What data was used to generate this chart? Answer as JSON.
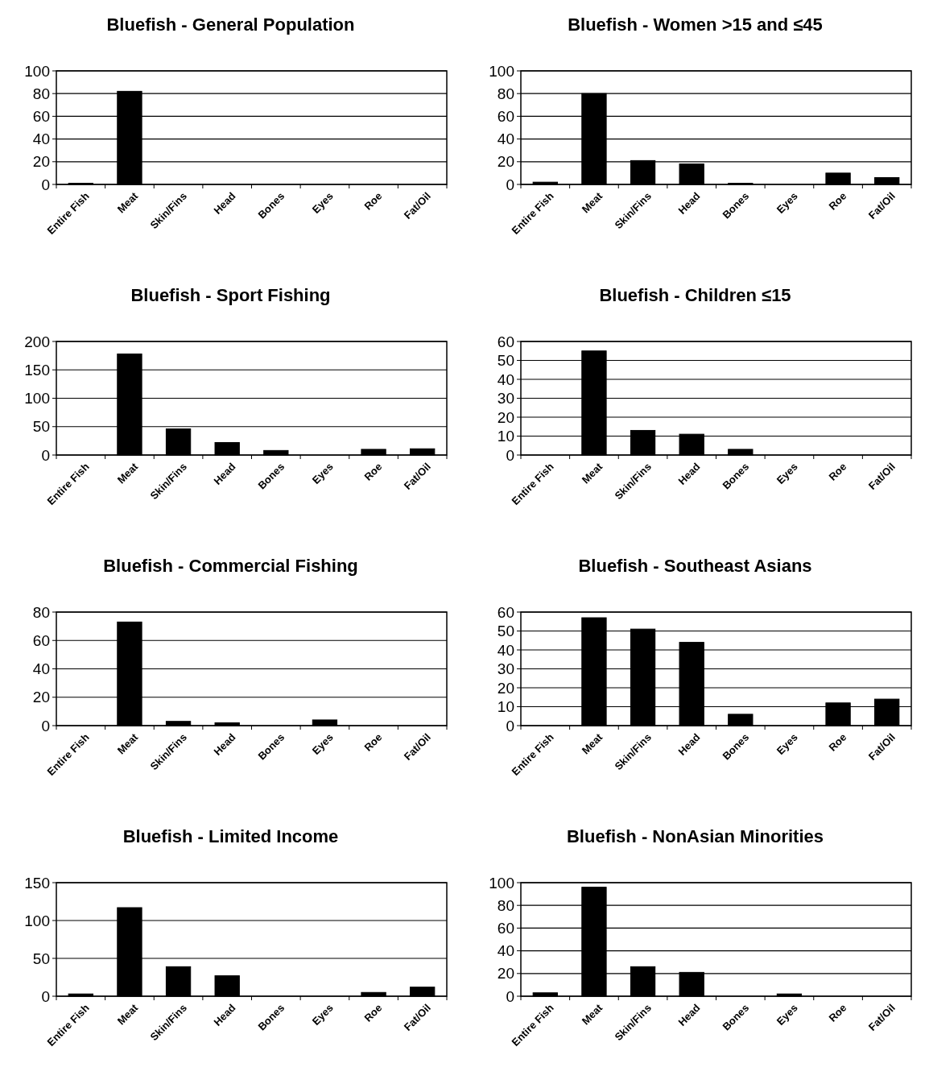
{
  "chart_data": [
    {
      "type": "bar",
      "title": "Bluefish - General Population",
      "categories": [
        "Entire Fish",
        "Meat",
        "Skin/Fins",
        "Head",
        "Bones",
        "Eyes",
        "Roe",
        "Fat/Oil"
      ],
      "values": [
        1,
        82,
        0,
        0,
        0,
        0,
        0,
        0
      ],
      "color": "#000000",
      "ylim": [
        0,
        100
      ],
      "yticks": [
        0,
        20,
        40,
        60,
        80,
        100
      ],
      "grid": "y"
    },
    {
      "type": "bar",
      "title": "Bluefish - Women >15 and ≤45",
      "categories": [
        "Entire Fish",
        "Meat",
        "Skin/Fins",
        "Head",
        "Bones",
        "Eyes",
        "Roe",
        "Fat/Oil"
      ],
      "values": [
        2,
        80,
        21,
        18,
        1,
        0,
        10,
        6
      ],
      "color": "#000000",
      "ylim": [
        0,
        100
      ],
      "yticks": [
        0,
        20,
        40,
        60,
        80,
        100
      ],
      "grid": "y"
    },
    {
      "type": "bar",
      "title": "Bluefish - Sport Fishing",
      "categories": [
        "Entire Fish",
        "Meat",
        "Skin/Fins",
        "Head",
        "Bones",
        "Eyes",
        "Roe",
        "Fat/Oil"
      ],
      "values": [
        0,
        178,
        46,
        22,
        8,
        0,
        10,
        11
      ],
      "color": "#000000",
      "ylim": [
        0,
        200
      ],
      "yticks": [
        0,
        50,
        100,
        150,
        200
      ],
      "grid": "y"
    },
    {
      "type": "bar",
      "title": "Bluefish - Children ≤15",
      "categories": [
        "Entire Fish",
        "Meat",
        "Skin/Fins",
        "Head",
        "Bones",
        "Eyes",
        "Roe",
        "Fat/Oil"
      ],
      "values": [
        0,
        55,
        13,
        11,
        3,
        0,
        0,
        0
      ],
      "color": "#000000",
      "ylim": [
        0,
        60
      ],
      "yticks": [
        0,
        10,
        20,
        30,
        40,
        50,
        60
      ],
      "grid": "y"
    },
    {
      "type": "bar",
      "title": "Bluefish - Commercial Fishing",
      "categories": [
        "Entire Fish",
        "Meat",
        "Skin/Fins",
        "Head",
        "Bones",
        "Eyes",
        "Roe",
        "Fat/Oil"
      ],
      "values": [
        0,
        73,
        3,
        2,
        0,
        4,
        0,
        0
      ],
      "color": "#000000",
      "ylim": [
        0,
        80
      ],
      "yticks": [
        0,
        20,
        40,
        60,
        80
      ],
      "grid": "y"
    },
    {
      "type": "bar",
      "title": "Bluefish - Southeast Asians",
      "categories": [
        "Entire Fish",
        "Meat",
        "Skin/Fins",
        "Head",
        "Bones",
        "Eyes",
        "Roe",
        "Fat/Oil"
      ],
      "values": [
        0,
        57,
        51,
        44,
        6,
        0,
        12,
        14
      ],
      "color": "#000000",
      "ylim": [
        0,
        60
      ],
      "yticks": [
        0,
        10,
        20,
        30,
        40,
        50,
        60
      ],
      "grid": "y"
    },
    {
      "type": "bar",
      "title": "Bluefish - Limited Income",
      "categories": [
        "Entire Fish",
        "Meat",
        "Skin/Fins",
        "Head",
        "Bones",
        "Eyes",
        "Roe",
        "Fat/Oil"
      ],
      "values": [
        3,
        117,
        39,
        27,
        0,
        0,
        5,
        12
      ],
      "color": "#000000",
      "ylim": [
        0,
        150
      ],
      "yticks": [
        0,
        50,
        100,
        150
      ],
      "grid": "y"
    },
    {
      "type": "bar",
      "title": "Bluefish - NonAsian Minorities",
      "categories": [
        "Entire Fish",
        "Meat",
        "Skin/Fins",
        "Head",
        "Bones",
        "Eyes",
        "Roe",
        "Fat/Oil"
      ],
      "values": [
        3,
        96,
        26,
        21,
        0,
        2,
        0,
        0
      ],
      "color": "#000000",
      "ylim": [
        0,
        100
      ],
      "yticks": [
        0,
        20,
        40,
        60,
        80,
        100
      ],
      "grid": "y"
    }
  ]
}
